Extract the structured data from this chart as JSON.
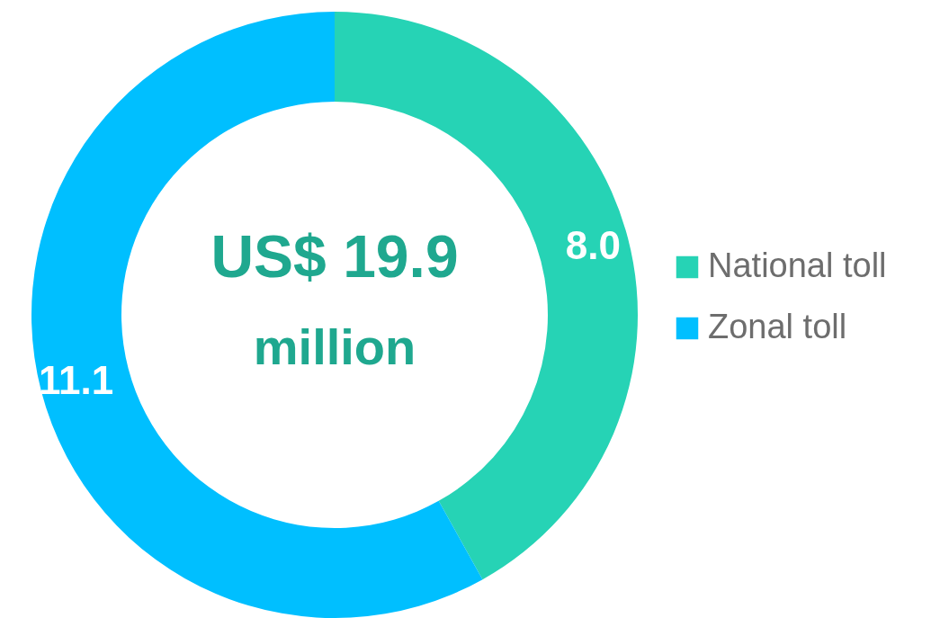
{
  "chart_data": {
    "type": "donut",
    "categories": [
      "National toll",
      "Zonal toll"
    ],
    "values": [
      8.0,
      11.1
    ],
    "value_labels": [
      "8.0",
      "11.1"
    ],
    "colors": [
      "#26d3b5",
      "#00bfff"
    ],
    "annotations": [
      "US$ 19.9",
      "million"
    ],
    "legend": "right"
  }
}
